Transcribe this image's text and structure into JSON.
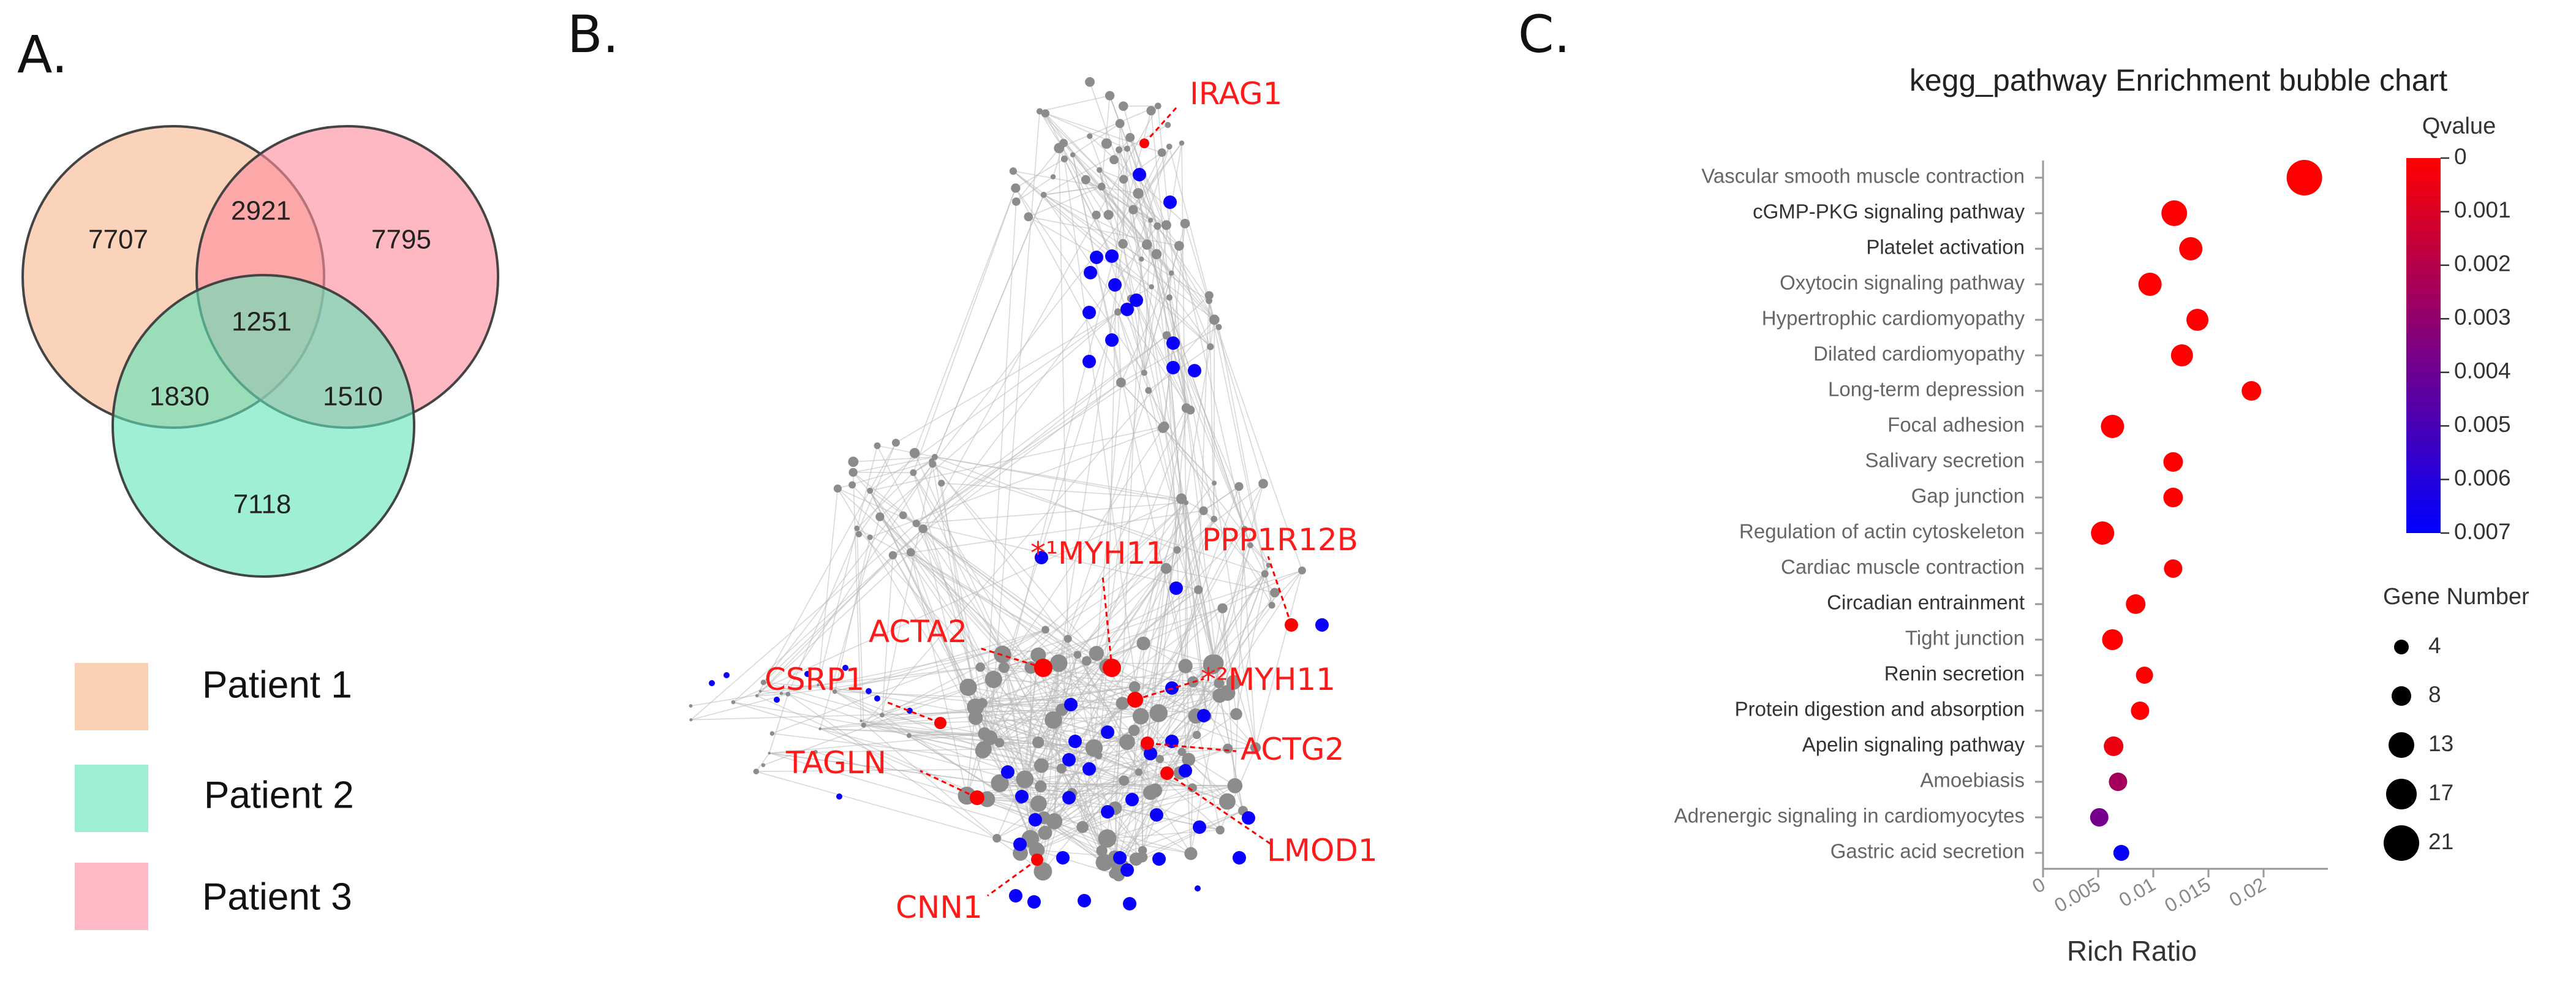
{
  "panels": {
    "a": "A.",
    "b": "B.",
    "c": "C."
  },
  "venn": {
    "regions": [
      {
        "key": "p1_only",
        "value": "7707"
      },
      {
        "key": "p1_p3",
        "value": "2921"
      },
      {
        "key": "p3_only",
        "value": "7795"
      },
      {
        "key": "all",
        "value": "1251"
      },
      {
        "key": "p1_p2",
        "value": "1830"
      },
      {
        "key": "p2_p3",
        "value": "1510"
      },
      {
        "key": "p2_only",
        "value": "7118"
      }
    ],
    "colors": {
      "patient1": "#f9b88f",
      "patient2": "#5de5b9",
      "patient3": "#fc8c9d"
    },
    "legend": [
      "Patient 1",
      "Patient 2",
      "Patient 3"
    ]
  },
  "network": {
    "labels": [
      "IRAG1",
      "PPP1R12B",
      "*¹MYH11",
      "ACTA2",
      "CSRP1",
      "*²MYH11",
      "ACTG2",
      "TAGLN",
      "LMOD1",
      "CNN1"
    ],
    "node_colors": {
      "hub": "#ff0000",
      "blue": "#0a00ff",
      "gray": "#8c8c8c"
    }
  },
  "chart_data": {
    "type": "scatter",
    "title": "kegg_pathway Enrichment bubble chart",
    "xlabel": "Rich Ratio",
    "ylabel": "",
    "xlim": [
      0,
      0.025
    ],
    "x_ticks": [
      "0",
      "0.005",
      "0.01",
      "0.015",
      "0.02"
    ],
    "x_tick_values": [
      0,
      0.005,
      0.01,
      0.015,
      0.02
    ],
    "color_legend": {
      "title": "Qvalue",
      "ticks": [
        "0",
        "0.001",
        "0.002",
        "0.003",
        "0.004",
        "0.005",
        "0.006",
        "0.007"
      ],
      "range": [
        0,
        0.007
      ]
    },
    "size_legend": {
      "title": "Gene Number",
      "ticks": [
        "4",
        "8",
        "13",
        "17",
        "21"
      ],
      "values": [
        4,
        8,
        13,
        17,
        21
      ]
    },
    "points": [
      {
        "category": "Vascular smooth muscle contraction",
        "rich_ratio": 0.0237,
        "gene_number": 21,
        "qvalue": 0.0
      },
      {
        "category": "cGMP-PKG signaling pathway",
        "rich_ratio": 0.0119,
        "gene_number": 13,
        "qvalue": 0.0
      },
      {
        "category": "Platelet activation",
        "rich_ratio": 0.0134,
        "gene_number": 11,
        "qvalue": 0.0
      },
      {
        "category": "Oxytocin signaling pathway",
        "rich_ratio": 0.0097,
        "gene_number": 11,
        "qvalue": 0.0
      },
      {
        "category": "Hypertrophic cardiomyopathy",
        "rich_ratio": 0.014,
        "gene_number": 10,
        "qvalue": 0.0
      },
      {
        "category": "Dilated cardiomyopathy",
        "rich_ratio": 0.0126,
        "gene_number": 10,
        "qvalue": 0.0
      },
      {
        "category": "Long-term depression",
        "rich_ratio": 0.0189,
        "gene_number": 8,
        "qvalue": 0.0
      },
      {
        "category": "Focal adhesion",
        "rich_ratio": 0.0063,
        "gene_number": 11,
        "qvalue": 0.0
      },
      {
        "category": "Salivary secretion",
        "rich_ratio": 0.0118,
        "gene_number": 8,
        "qvalue": 0.0
      },
      {
        "category": "Gap junction",
        "rich_ratio": 0.0118,
        "gene_number": 8,
        "qvalue": 0.0
      },
      {
        "category": "Regulation of actin cytoskeleton",
        "rich_ratio": 0.0054,
        "gene_number": 11,
        "qvalue": 0.0
      },
      {
        "category": "Cardiac muscle contraction",
        "rich_ratio": 0.0118,
        "gene_number": 7,
        "qvalue": 0.0
      },
      {
        "category": "Circadian entrainment",
        "rich_ratio": 0.0084,
        "gene_number": 8,
        "qvalue": 0.0
      },
      {
        "category": "Tight junction",
        "rich_ratio": 0.0063,
        "gene_number": 9,
        "qvalue": 0.0
      },
      {
        "category": "Renin secretion",
        "rich_ratio": 0.0092,
        "gene_number": 6,
        "qvalue": 0.0
      },
      {
        "category": "Protein digestion and absorption",
        "rich_ratio": 0.0088,
        "gene_number": 7,
        "qvalue": 0.0
      },
      {
        "category": "Apelin signaling pathway",
        "rich_ratio": 0.0064,
        "gene_number": 8,
        "qvalue": 0.0005
      },
      {
        "category": "Amoebiasis",
        "rich_ratio": 0.0068,
        "gene_number": 7,
        "qvalue": 0.0025
      },
      {
        "category": "Adrenergic signaling in cardiomyocytes",
        "rich_ratio": 0.0051,
        "gene_number": 7,
        "qvalue": 0.0038
      },
      {
        "category": "Gastric acid secretion",
        "rich_ratio": 0.0071,
        "gene_number": 5,
        "qvalue": 0.0068
      }
    ]
  }
}
